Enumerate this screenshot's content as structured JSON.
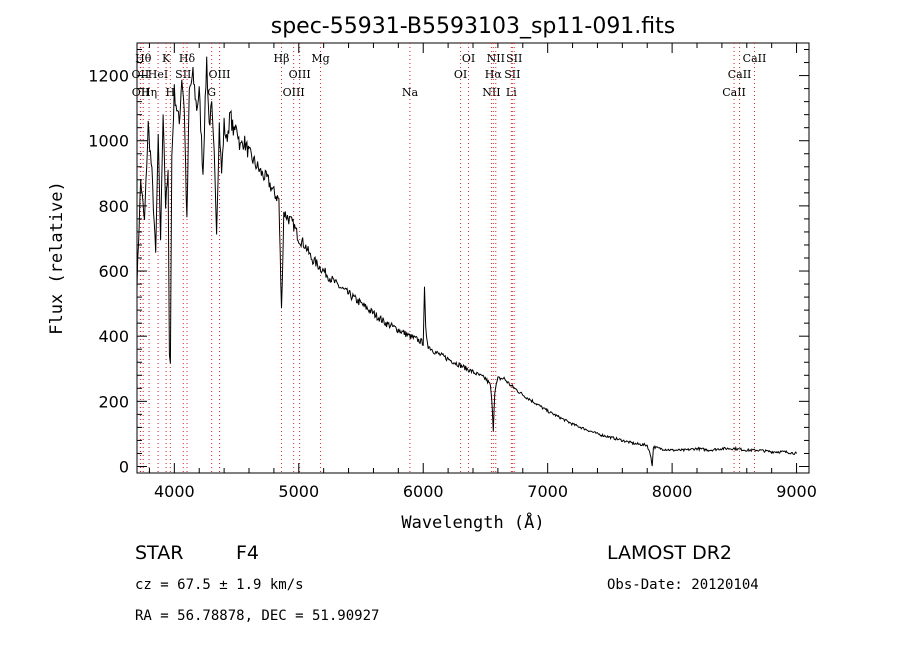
{
  "chart_data": {
    "type": "line",
    "title": "spec-55931-B5593103_sp11-091.fits",
    "xlabel": "Wavelength (Å)",
    "ylabel": "Flux (relative)",
    "xlim": [
      3700,
      9100
    ],
    "ylim": [
      -20,
      1300
    ],
    "xticks": [
      4000,
      5000,
      6000,
      7000,
      8000,
      9000
    ],
    "yticks": [
      0,
      200,
      400,
      600,
      800,
      1000,
      1200
    ],
    "grid": false,
    "line_color": "#000000",
    "marker_color": "#d62728",
    "series": [
      {
        "x": [
          3700,
          3730,
          3760,
          3790,
          3820,
          3850,
          3870,
          3890,
          3910,
          3930,
          3950,
          3960,
          3968,
          3980,
          4000,
          4020,
          4040,
          4060,
          4080,
          4101,
          4120,
          4150,
          4180,
          4200,
          4230,
          4260,
          4280,
          4300,
          4320,
          4340,
          4361,
          4380,
          4400,
          4420,
          4450,
          4480,
          4500,
          4530,
          4560,
          4600,
          4650,
          4700,
          4750,
          4800,
          4840,
          4861,
          4880,
          4920,
          4960,
          5000,
          5050,
          5100,
          5150,
          5200,
          5250,
          5300,
          5400,
          5500,
          5600,
          5700,
          5800,
          5890,
          5950,
          6000,
          6010,
          6020,
          6040,
          6100,
          6200,
          6300,
          6400,
          6450,
          6500,
          6540,
          6555,
          6563,
          6575,
          6600,
          6650,
          6700,
          6800,
          6900,
          7000,
          7100,
          7200,
          7300,
          7400,
          7500,
          7600,
          7700,
          7800,
          7830,
          7840,
          7850,
          7900,
          8000,
          8100,
          8200,
          8300,
          8400,
          8500,
          8600,
          8700,
          8800,
          8900,
          9000
        ],
        "y": [
          560,
          880,
          750,
          1050,
          900,
          650,
          1000,
          700,
          1100,
          800,
          900,
          350,
          320,
          950,
          1150,
          1100,
          1050,
          1200,
          1100,
          750,
          1150,
          1200,
          1100,
          1150,
          900,
          1250,
          1050,
          1100,
          950,
          730,
          1050,
          900,
          1050,
          1000,
          1080,
          1020,
          1050,
          980,
          1000,
          960,
          930,
          900,
          880,
          840,
          820,
          480,
          780,
          760,
          740,
          700,
          680,
          640,
          620,
          600,
          580,
          560,
          530,
          500,
          470,
          440,
          420,
          400,
          390,
          380,
          540,
          420,
          370,
          350,
          330,
          310,
          290,
          280,
          270,
          250,
          180,
          110,
          230,
          270,
          270,
          250,
          220,
          195,
          170,
          150,
          130,
          115,
          100,
          90,
          80,
          70,
          65,
          30,
          0,
          60,
          55,
          50,
          50,
          55,
          50,
          55,
          55,
          50,
          50,
          45,
          45,
          40
        ]
      }
    ],
    "line_markers": [
      {
        "w": 3727,
        "label": "OII",
        "row": 2
      },
      {
        "w": 3729,
        "label": "OII",
        "row": 3
      },
      {
        "w": 3750,
        "label": "Hθ",
        "row": 1
      },
      {
        "w": 3797,
        "label": "Hη",
        "row": 3
      },
      {
        "w": 3869,
        "label": "HeI",
        "row": 2
      },
      {
        "w": 3934,
        "label": "K",
        "row": 1
      },
      {
        "w": 3968,
        "label": "H",
        "row": 3
      },
      {
        "w": 4072,
        "label": "SII",
        "row": 2
      },
      {
        "w": 4102,
        "label": "Hδ",
        "row": 1
      },
      {
        "w": 4300,
        "label": "G",
        "row": 3
      },
      {
        "w": 4363,
        "label": "OIII",
        "row": 2
      },
      {
        "w": 4861,
        "label": "Hβ",
        "row": 1
      },
      {
        "w": 4959,
        "label": "OIII",
        "row": 3
      },
      {
        "w": 5007,
        "label": "OIII",
        "row": 2
      },
      {
        "w": 5175,
        "label": "Mg",
        "row": 1
      },
      {
        "w": 5893,
        "label": "Na",
        "row": 3
      },
      {
        "w": 6300,
        "label": "OI",
        "row": 2
      },
      {
        "w": 6364,
        "label": "OI",
        "row": 1
      },
      {
        "w": 6548,
        "label": "NII",
        "row": 3
      },
      {
        "w": 6563,
        "label": "Hα",
        "row": 2
      },
      {
        "w": 6583,
        "label": "NII",
        "row": 1
      },
      {
        "w": 6708,
        "label": "Li",
        "row": 3
      },
      {
        "w": 6716,
        "label": "SII",
        "row": 2
      },
      {
        "w": 6731,
        "label": "SII",
        "row": 1
      },
      {
        "w": 8498,
        "label": "CaII",
        "row": 3
      },
      {
        "w": 8542,
        "label": "CaII",
        "row": 2
      },
      {
        "w": 8662,
        "label": "CaII",
        "row": 1
      }
    ]
  },
  "info": {
    "object_class": "STAR",
    "subclass": "F4",
    "survey": "LAMOST DR2",
    "cz": "cz = 67.5 ± 1.9 km/s",
    "obs_date": "Obs-Date: 20120104",
    "coords": "RA =  56.78878, DEC =  51.90927"
  }
}
